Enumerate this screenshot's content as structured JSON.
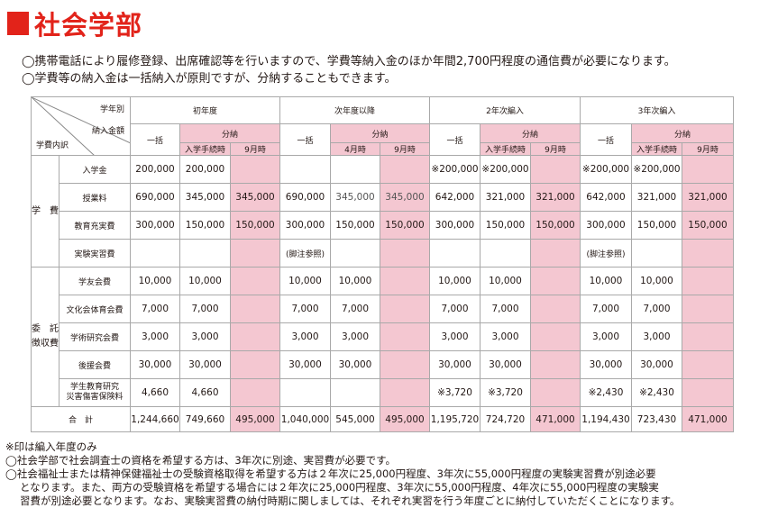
{
  "title": "社会学部",
  "intro": [
    "◯携帯電話により履修登録、出席確認等を行いますので、学費等納入金のほか年間2,700円程度の通信費が必要になります。",
    "◯学費等の納入金は一括納入が原則ですが、分納することもできます。"
  ],
  "table": {
    "corner": {
      "top": "学年別",
      "middle": "納入金額",
      "bottom": "学費内訳"
    },
    "periods": [
      "初年度",
      "次年度以降",
      "2年次編入",
      "3年次編入"
    ],
    "lump": "一括",
    "installment": "分納",
    "sub": [
      [
        "入学手続時",
        "9月時"
      ],
      [
        "4月時",
        "9月時"
      ],
      [
        "入学手続時",
        "9月時"
      ],
      [
        "入学手続時",
        "9月時"
      ]
    ],
    "groups": {
      "tuition": "学　費",
      "commissioned": "委　託 徴収費"
    },
    "rows": [
      {
        "label": "入学金",
        "cells": [
          "200,000",
          "200,000",
          "",
          "",
          "",
          "",
          "※200,000",
          "※200,000",
          "",
          "※200,000",
          "※200,000",
          ""
        ]
      },
      {
        "label": "授業料",
        "cells": [
          "690,000",
          "345,000",
          "345,000",
          "690,000",
          "345,000",
          "345,000",
          "642,000",
          "321,000",
          "321,000",
          "642,000",
          "321,000",
          "321,000"
        ]
      },
      {
        "label": "教育充実費",
        "cells": [
          "300,000",
          "150,000",
          "150,000",
          "300,000",
          "150,000",
          "150,000",
          "300,000",
          "150,000",
          "150,000",
          "300,000",
          "150,000",
          "150,000"
        ]
      },
      {
        "label": "実験実習費",
        "notes": [
          "(脚注参照)",
          "(脚注参照)"
        ]
      },
      {
        "label": "学友会費",
        "cells": [
          "10,000",
          "10,000",
          "",
          "10,000",
          "10,000",
          "",
          "10,000",
          "10,000",
          "",
          "10,000",
          "10,000",
          ""
        ]
      },
      {
        "label": "文化会体育会費",
        "cells": [
          "7,000",
          "7,000",
          "",
          "7,000",
          "7,000",
          "",
          "7,000",
          "7,000",
          "",
          "7,000",
          "7,000",
          ""
        ]
      },
      {
        "label": "学術研究会費",
        "cells": [
          "3,000",
          "3,000",
          "",
          "3,000",
          "3,000",
          "",
          "3,000",
          "3,000",
          "",
          "3,000",
          "3,000",
          ""
        ]
      },
      {
        "label": "後援会費",
        "cells": [
          "30,000",
          "30,000",
          "",
          "30,000",
          "30,000",
          "",
          "30,000",
          "30,000",
          "",
          "30,000",
          "30,000",
          ""
        ]
      },
      {
        "label1": "学生教育研究",
        "label2": "災害傷害保険料",
        "cells": [
          "4,660",
          "4,660",
          "",
          "",
          "",
          "",
          "※3,720",
          "※3,720",
          "",
          "※2,430",
          "※2,430",
          ""
        ]
      }
    ],
    "total": {
      "label": "合　計",
      "cells": [
        "1,244,660",
        "749,660",
        "495,000",
        "1,040,000",
        "545,000",
        "495,000",
        "1,195,720",
        "724,720",
        "471,000",
        "1,194,430",
        "723,430",
        "471,000"
      ]
    }
  },
  "notes": [
    "※印は編入年度のみ",
    "◯社会学部で社会調査士の資格を希望する方は、3年次に別途、実習費が必要です。",
    "◯社会福祉士または精神保健福祉士の受験資格取得を希望する方は２年次に25,000円程度、3年次に55,000円程度の実験実習費が別途必要",
    "となります。また、両方の受験資格を希望する場合には２年次に25,000円程度、3年次に55,000円程度、4年次に55,000円程度の実験実",
    "習費が別途必要となります。なお、実験実習費の納付時期に関しましては、それぞれ実習を行う年度ごとに納付していただくことになります。"
  ],
  "colors": {
    "accent": "#e2231a",
    "pink": "#f4c7d1",
    "border": "#a9a9a9"
  }
}
